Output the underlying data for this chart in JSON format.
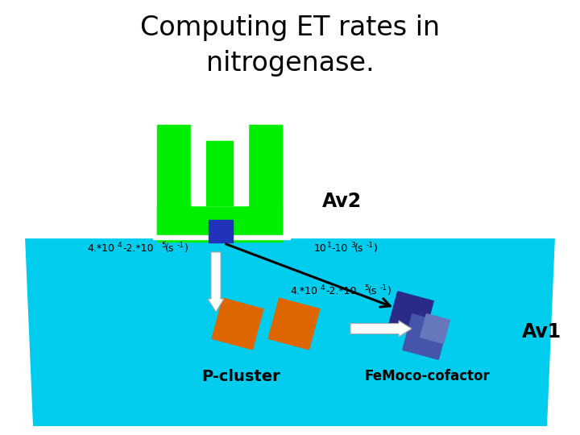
{
  "title_line1": "Computing ET rates in",
  "title_line2": "nitrogenase.",
  "title_fontsize": 24,
  "bg_color": "#ffffff",
  "cyan_bg": "#00ccee",
  "green_protein": "#00ee00",
  "blue_cofactor": "#2233bb",
  "orange_cluster": "#dd6600",
  "femoco_dark": "#2a2a88",
  "femoco_light": "#4455aa",
  "av2_label": "Av2",
  "av1_label": "Av1",
  "pcluster_label": "P-cluster",
  "femoco_label": "FeMoco-cofactor",
  "rate1": "4.*10",
  "rate1_sup1": "4",
  "rate1_mid": "-2.*10",
  "rate1_sup2": "5",
  "rate1_end": "(s",
  "rate1_sup3": "-1",
  "rate1_close": ")",
  "rate2": "10",
  "rate2_sup1": "1",
  "rate2_mid": "-10",
  "rate2_sup2": "3",
  "rate2_end": "(s",
  "rate2_sup3": "-1",
  "rate2_close": ")",
  "rate3": "4.*10",
  "rate3_sup1": "4",
  "rate3_mid": "-2.*10",
  "rate3_sup2": "5",
  "rate3_end": "(s",
  "rate3_sup3": "-1",
  "rate3_close": ")"
}
